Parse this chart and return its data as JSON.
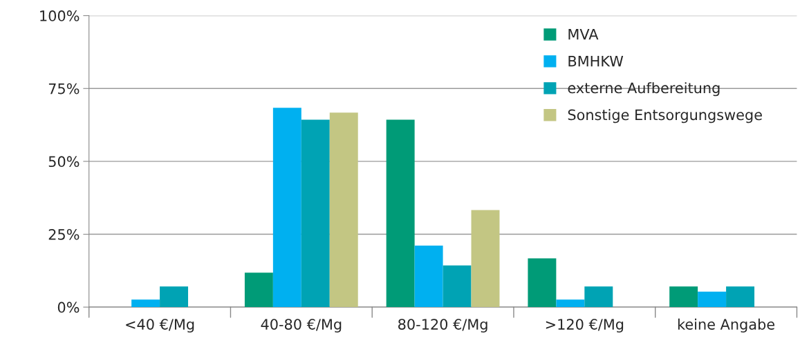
{
  "chart_data": {
    "type": "bar",
    "categories": [
      "<40 €/Mg",
      "40-80 €/Mg",
      "80-120 €/Mg",
      ">120 €/Mg",
      "keine Angabe"
    ],
    "series": [
      {
        "name": "MVA",
        "color": "#009b77",
        "values": [
          null,
          11.8,
          64.3,
          16.7,
          7.1
        ]
      },
      {
        "name": "BMHKW",
        "color": "#00b0f0",
        "values": [
          2.6,
          68.4,
          21.1,
          2.6,
          5.3
        ]
      },
      {
        "name": "externe Aufbereitung",
        "color": "#00a3b4",
        "values": [
          7.1,
          64.3,
          14.3,
          7.1,
          7.1
        ]
      },
      {
        "name": "Sonstige Entsorgungswege",
        "color": "#c3c683",
        "values": [
          null,
          66.7,
          33.3,
          null,
          null
        ]
      }
    ],
    "ylim": [
      0,
      100
    ],
    "yticks": [
      {
        "value": 0,
        "label": "0%"
      },
      {
        "value": 25,
        "label": "25%"
      },
      {
        "value": 50,
        "label": "50%"
      },
      {
        "value": 75,
        "label": "75%"
      },
      {
        "value": 100,
        "label": "100%"
      }
    ],
    "grid": "y",
    "legend": "top right"
  }
}
